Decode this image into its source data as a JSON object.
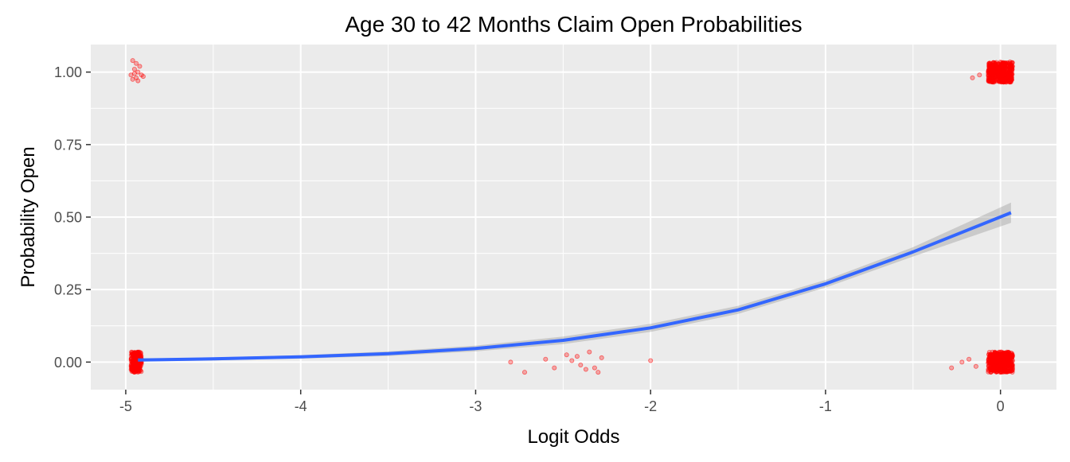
{
  "chart_data": {
    "type": "scatter",
    "title": "Age 30 to 42 Months Claim Open Probabilities",
    "xlabel": "Logit Odds",
    "ylabel": "Probability Open",
    "xlim": [
      -5.2,
      0.32
    ],
    "ylim": [
      -0.095,
      1.095
    ],
    "x_ticks": [
      -5,
      -4,
      -3,
      -2,
      -1,
      0
    ],
    "x_tick_labels": [
      "-5",
      "-4",
      "-3",
      "-2",
      "-1",
      "0"
    ],
    "y_ticks": [
      0.0,
      0.25,
      0.5,
      0.75,
      1.0
    ],
    "y_tick_labels": [
      "0.00",
      "0.25",
      "0.50",
      "0.75",
      "1.00"
    ],
    "grid": true,
    "legend": "none",
    "colors": {
      "panel_background": "#EBEBEB",
      "grid_line": "#FFFFFF",
      "points": "#FF0000",
      "fit_line": "#3366FF",
      "confidence_band": "#999999"
    },
    "series": [
      {
        "kind": "jittered-points",
        "points": [
          {
            "x": -4.96,
            "y": 1.04
          },
          {
            "x": -4.94,
            "y": 1.03
          },
          {
            "x": -4.92,
            "y": 1.02
          },
          {
            "x": -4.95,
            "y": 1.01
          },
          {
            "x": -4.93,
            "y": 1.0
          },
          {
            "x": -4.97,
            "y": 0.99
          },
          {
            "x": -4.91,
            "y": 0.99
          },
          {
            "x": -4.94,
            "y": 0.98
          },
          {
            "x": -4.96,
            "y": 0.975
          },
          {
            "x": -4.93,
            "y": 0.97
          },
          {
            "x": -4.9,
            "y": 0.985
          },
          {
            "x": -4.95,
            "y": 0.995
          },
          {
            "x": -2.8,
            "y": 0.0
          },
          {
            "x": -2.72,
            "y": -0.035
          },
          {
            "x": -2.6,
            "y": 0.01
          },
          {
            "x": -2.55,
            "y": -0.02
          },
          {
            "x": -2.48,
            "y": 0.025
          },
          {
            "x": -2.45,
            "y": 0.005
          },
          {
            "x": -2.42,
            "y": 0.02
          },
          {
            "x": -2.4,
            "y": -0.01
          },
          {
            "x": -2.37,
            "y": -0.025
          },
          {
            "x": -2.35,
            "y": 0.035
          },
          {
            "x": -2.32,
            "y": -0.02
          },
          {
            "x": -2.3,
            "y": -0.035
          },
          {
            "x": -2.28,
            "y": 0.015
          },
          {
            "x": -2.0,
            "y": 0.005
          },
          {
            "x": -0.28,
            "y": -0.02
          },
          {
            "x": -0.22,
            "y": 0.0
          },
          {
            "x": -0.18,
            "y": 0.01
          },
          {
            "x": -0.16,
            "y": 0.98
          },
          {
            "x": -0.14,
            "y": -0.015
          },
          {
            "x": -0.12,
            "y": 0.99
          }
        ]
      },
      {
        "kind": "dense-clusters",
        "clusters": [
          {
            "x_center": -4.94,
            "x_spread": 0.03,
            "y_center": 0.0,
            "y_spread": 0.035,
            "count": 220
          },
          {
            "x_center": 0.0,
            "x_spread": 0.07,
            "y_center": 1.0,
            "y_spread": 0.035,
            "count": 420
          },
          {
            "x_center": 0.0,
            "x_spread": 0.07,
            "y_center": 0.0,
            "y_spread": 0.035,
            "count": 420
          }
        ]
      },
      {
        "kind": "fit-line",
        "x": [
          -4.93,
          -4.5,
          -4.0,
          -3.5,
          -3.0,
          -2.5,
          -2.0,
          -1.5,
          -1.0,
          -0.5,
          0.06
        ],
        "y": [
          0.007,
          0.011,
          0.018,
          0.029,
          0.047,
          0.075,
          0.118,
          0.18,
          0.27,
          0.38,
          0.515
        ],
        "y_lower": [
          0.002,
          0.006,
          0.012,
          0.021,
          0.037,
          0.062,
          0.104,
          0.166,
          0.257,
          0.364,
          0.48
        ],
        "y_upper": [
          0.012,
          0.016,
          0.024,
          0.037,
          0.057,
          0.088,
          0.132,
          0.194,
          0.283,
          0.396,
          0.55
        ]
      }
    ]
  }
}
